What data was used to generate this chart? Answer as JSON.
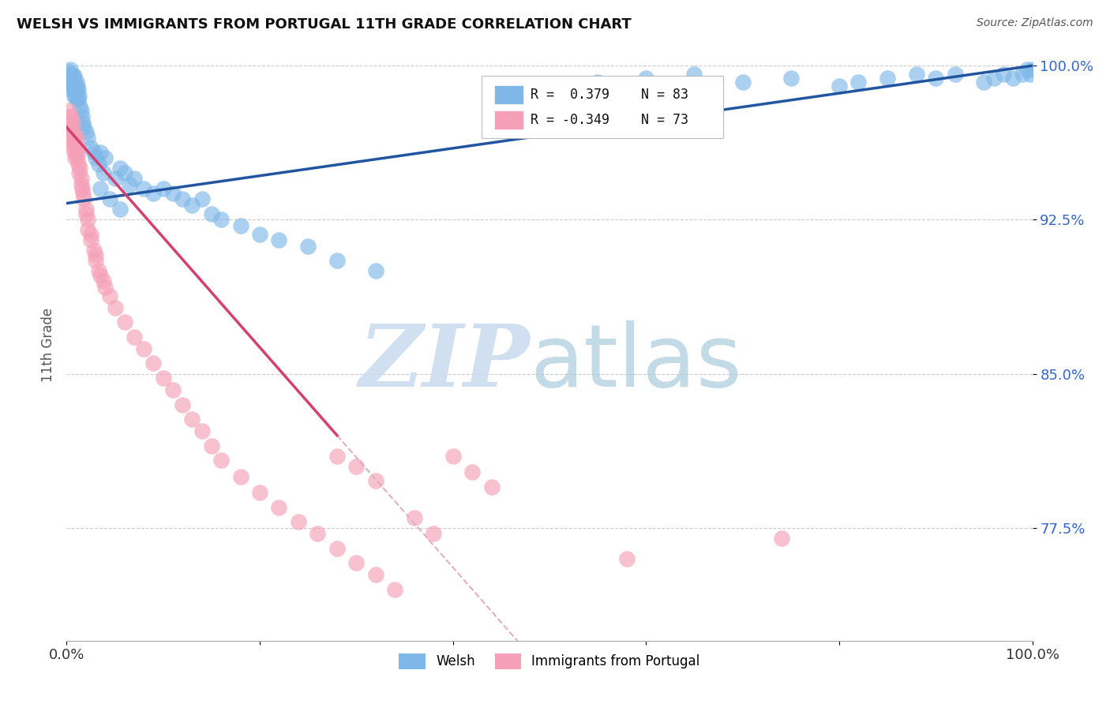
{
  "title": "WELSH VS IMMIGRANTS FROM PORTUGAL 11TH GRADE CORRELATION CHART",
  "source": "Source: ZipAtlas.com",
  "ylabel": "11th Grade",
  "xlim": [
    0.0,
    1.0
  ],
  "ylim": [
    0.72,
    1.008
  ],
  "yticks": [
    0.775,
    0.85,
    0.925,
    1.0
  ],
  "ytick_labels": [
    "77.5%",
    "85.0%",
    "92.5%",
    "100.0%"
  ],
  "welsh_R": 0.379,
  "welsh_N": 83,
  "portugal_R": -0.349,
  "portugal_N": 73,
  "welsh_color": "#7fb8e8",
  "portugal_color": "#f5a0b8",
  "welsh_line_color": "#2255a0",
  "portugal_line_color": "#d44070",
  "portugal_line_dashed_color": "#e0b0c0",
  "background_color": "#ffffff",
  "grid_color": "#cccccc"
}
